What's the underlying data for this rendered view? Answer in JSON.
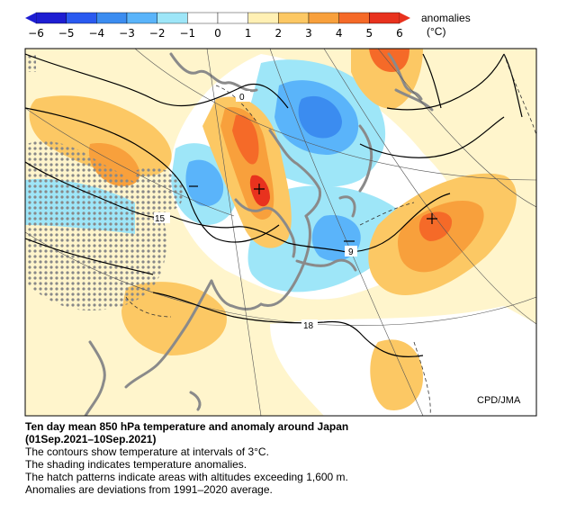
{
  "legend": {
    "title": "anomalies",
    "unit": "(°C)",
    "ticks": [
      "−6",
      "−5",
      "−4",
      "−3",
      "−2",
      "−1",
      "0",
      "1",
      "2",
      "3",
      "4",
      "5",
      "6"
    ],
    "colors": [
      "#1e1ed2",
      "#2a5af0",
      "#3b8cf0",
      "#5ab4fa",
      "#9ee6f8",
      "#ffffff",
      "#ffffff",
      "#fff0b4",
      "#fcc864",
      "#f8a03c",
      "#f56a28",
      "#e8321e"
    ]
  },
  "map": {
    "contour_interval_c": 3,
    "contour_labels": [
      "0",
      "9",
      "15",
      "18"
    ],
    "credit": "CPD/JMA"
  },
  "caption": {
    "title": "Ten day mean 850 hPa temperature and anomaly around Japan",
    "period": "(01Sep.2021–10Sep.2021)",
    "lines": [
      "The contours show temperature at intervals of 3°C.",
      "The shading indicates temperature anomalies.",
      "The hatch patterns indicate areas with altitudes exceeding 1,600 m.",
      "Anomalies are deviations from 1991–2020 average."
    ]
  }
}
